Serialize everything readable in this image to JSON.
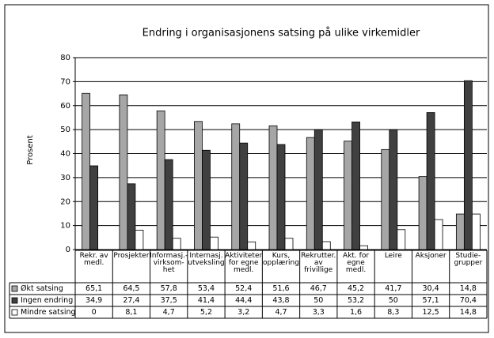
{
  "chart_data": {
    "type": "bar",
    "title": "Endring i organisasjonens satsing på ulike virkemidler",
    "y_label": "Prosent",
    "categories": [
      "Rekr. av\nmedl.",
      "Prosjekter",
      "Informasj.-\nvirksom-\nhet",
      "Internasj.\nutveksling",
      "Aktiviteter\nfor egne\nmedl.",
      "Kurs,\nopplæring",
      "Rekrutter.\nav\nfrivillige",
      "Akt. for\negne\nmedl.",
      "Leire",
      "Aksjoner",
      "Studie-\ngrupper"
    ],
    "series": [
      {
        "name": "Økt satsing",
        "color": "#a6a6a6",
        "values": [
          65.1,
          64.5,
          57.8,
          53.4,
          52.4,
          51.6,
          46.7,
          45.2,
          41.7,
          30.4,
          14.8
        ],
        "value_labels": [
          "65,1",
          "64,5",
          "57,8",
          "53,4",
          "52,4",
          "51,6",
          "46,7",
          "45,2",
          "41,7",
          "30,4",
          "14,8"
        ]
      },
      {
        "name": "Ingen endring",
        "color": "#404040",
        "values": [
          34.9,
          27.4,
          37.5,
          41.4,
          44.4,
          43.8,
          50,
          53.2,
          50,
          57.1,
          70.4
        ],
        "value_labels": [
          "34,9",
          "27,4",
          "37,5",
          "41,4",
          "44,4",
          "43,8",
          "50",
          "53,2",
          "50",
          "57,1",
          "70,4"
        ]
      },
      {
        "name": "Mindre satsing",
        "color": "#ffffff",
        "values": [
          0,
          8.1,
          4.7,
          5.2,
          3.2,
          4.7,
          3.3,
          1.6,
          8.3,
          12.5,
          14.8
        ],
        "value_labels": [
          "0",
          "8,1",
          "4,7",
          "5,2",
          "3,2",
          "4,7",
          "3,3",
          "1,6",
          "8,3",
          "12,5",
          "14,8"
        ]
      }
    ],
    "ylim": [
      0,
      80
    ],
    "yticks": [
      0,
      10,
      20,
      30,
      40,
      50,
      60,
      70,
      80
    ],
    "grid": true
  }
}
